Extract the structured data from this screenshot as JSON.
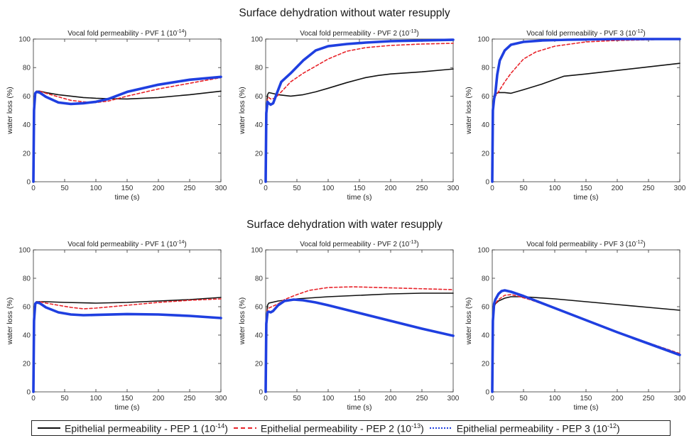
{
  "figure": {
    "row_titles": [
      "Surface dehydration without water resupply",
      "Surface dehydration with water resupply"
    ],
    "colors": {
      "pep1": "#111111",
      "pep2": "#e8232a",
      "pep3": "#1f3fe0"
    },
    "legend": [
      {
        "label": "Epithelial permeability - PEP 1 (10",
        "exp": "-14",
        "close": ")",
        "style": "solid",
        "color": "#111111"
      },
      {
        "label": "Epithelial permeability - PEP 2 (10",
        "exp": "-13",
        "close": ")",
        "style": "dashed",
        "color": "#e8232a"
      },
      {
        "label": "Epithelial permeability - PEP 3 (10",
        "exp": "-12",
        "close": ")",
        "style": "dotted",
        "color": "#1f3fe0"
      }
    ]
  },
  "chart_data": [
    {
      "type": "line",
      "title": "Vocal fold permeability - PVF 1 (10",
      "title_exp": "-14",
      "title_close": ")",
      "xlabel": "time (s)",
      "ylabel": "water loss (%)",
      "xlim": [
        0,
        300
      ],
      "ylim": [
        0,
        100
      ],
      "xticks": [
        0,
        50,
        100,
        150,
        200,
        250,
        300
      ],
      "yticks": [
        0,
        20,
        40,
        60,
        80,
        100
      ],
      "series": [
        {
          "name": "PEP 1",
          "x": [
            0,
            1,
            3,
            5,
            10,
            20,
            40,
            60,
            80,
            100,
            120,
            150,
            200,
            250,
            300
          ],
          "y": [
            0,
            50,
            62,
            63.5,
            63.5,
            62.5,
            61,
            60,
            59,
            58.5,
            58.2,
            58,
            59,
            61,
            63.5
          ]
        },
        {
          "name": "PEP 2",
          "x": [
            0,
            1,
            3,
            5,
            10,
            20,
            40,
            60,
            80,
            100,
            120,
            150,
            200,
            250,
            300
          ],
          "y": [
            0,
            50,
            62,
            63.5,
            63.5,
            62,
            59.5,
            57,
            56,
            55.5,
            56.5,
            60,
            65,
            69,
            73
          ]
        },
        {
          "name": "PEP 3",
          "x": [
            0,
            1,
            3,
            5,
            10,
            20,
            40,
            60,
            80,
            100,
            120,
            150,
            200,
            250,
            300
          ],
          "y": [
            0,
            50,
            62,
            63,
            62.5,
            59.5,
            55.5,
            54.5,
            55,
            56,
            58,
            63,
            68,
            71.5,
            73.5
          ]
        }
      ]
    },
    {
      "type": "line",
      "title": "Vocal fold permeability - PVF 2 (10",
      "title_exp": "-13",
      "title_close": ")",
      "xlabel": "time (s)",
      "ylabel": "water loss (%)",
      "xlim": [
        0,
        300
      ],
      "ylim": [
        0,
        100
      ],
      "xticks": [
        0,
        50,
        100,
        150,
        200,
        250,
        300
      ],
      "yticks": [
        0,
        20,
        40,
        60,
        80,
        100
      ],
      "series": [
        {
          "name": "PEP 1",
          "x": [
            0,
            1,
            3,
            5,
            10,
            20,
            40,
            60,
            80,
            100,
            130,
            160,
            180,
            200,
            250,
            300
          ],
          "y": [
            0,
            50,
            61,
            62.5,
            62,
            61,
            60,
            61,
            63,
            65.5,
            69.5,
            73,
            74.5,
            75.5,
            77,
            79
          ]
        },
        {
          "name": "PEP 2",
          "x": [
            0,
            1,
            3,
            5,
            8,
            15,
            25,
            40,
            60,
            80,
            100,
            130,
            160,
            200,
            250,
            300
          ],
          "y": [
            0,
            50,
            58,
            59,
            58,
            58.5,
            63,
            70,
            76,
            81,
            86,
            91.5,
            94,
            95.5,
            96.5,
            97
          ]
        },
        {
          "name": "PEP 3",
          "x": [
            0,
            1,
            3,
            5,
            8,
            12,
            18,
            25,
            40,
            60,
            80,
            100,
            130,
            160,
            200,
            250,
            300
          ],
          "y": [
            0,
            48,
            56,
            55,
            54,
            55,
            62,
            70,
            76,
            85,
            92,
            95,
            96.5,
            97.5,
            98.5,
            99,
            99.5
          ]
        }
      ]
    },
    {
      "type": "line",
      "title": "Vocal fold permeability - PVF 3 (10",
      "title_exp": "-12",
      "title_close": ")",
      "xlabel": "time (s)",
      "ylabel": "water loss (%)",
      "xlim": [
        0,
        300
      ],
      "ylim": [
        0,
        100
      ],
      "xticks": [
        0,
        50,
        100,
        150,
        200,
        250,
        300
      ],
      "yticks": [
        0,
        20,
        40,
        60,
        80,
        100
      ],
      "series": [
        {
          "name": "PEP 1",
          "x": [
            0,
            1,
            3,
            5,
            10,
            20,
            30,
            50,
            80,
            115,
            150,
            200,
            250,
            300
          ],
          "y": [
            0,
            50,
            60,
            61.5,
            62.5,
            62.5,
            62,
            64.5,
            68.5,
            74,
            75.5,
            78,
            80.5,
            83
          ]
        },
        {
          "name": "PEP 2",
          "x": [
            0,
            1,
            3,
            5,
            10,
            20,
            30,
            50,
            70,
            100,
            150,
            200,
            250,
            300
          ],
          "y": [
            0,
            50,
            58,
            60,
            63,
            70,
            76,
            86,
            91,
            95,
            98,
            99,
            99.5,
            100
          ]
        },
        {
          "name": "PEP 3",
          "x": [
            0,
            1,
            3,
            5,
            8,
            12,
            20,
            30,
            50,
            80,
            120,
            200,
            300
          ],
          "y": [
            0,
            50,
            58,
            62,
            75,
            85,
            92,
            96,
            98,
            99,
            99.5,
            100,
            100
          ]
        }
      ]
    },
    {
      "type": "line",
      "title": "Vocal fold permeability - PVF 1 (10",
      "title_exp": "-14",
      "title_close": ")",
      "xlabel": "time (s)",
      "ylabel": "water loss (%)",
      "xlim": [
        0,
        300
      ],
      "ylim": [
        0,
        100
      ],
      "xticks": [
        0,
        50,
        100,
        150,
        200,
        250,
        300
      ],
      "yticks": [
        0,
        20,
        40,
        60,
        80,
        100
      ],
      "series": [
        {
          "name": "PEP 1",
          "x": [
            0,
            1,
            3,
            5,
            10,
            20,
            50,
            100,
            150,
            200,
            250,
            300
          ],
          "y": [
            0,
            50,
            62,
            63.5,
            63.5,
            63.5,
            63,
            62.5,
            63,
            64,
            65,
            66.5
          ]
        },
        {
          "name": "PEP 2",
          "x": [
            0,
            1,
            3,
            5,
            10,
            20,
            40,
            60,
            80,
            100,
            150,
            200,
            250,
            300
          ],
          "y": [
            0,
            50,
            62,
            63.5,
            63.5,
            62.5,
            61,
            59.5,
            58.5,
            59,
            61,
            63,
            64.5,
            65.5
          ]
        },
        {
          "name": "PEP 3",
          "x": [
            0,
            1,
            3,
            5,
            10,
            20,
            40,
            60,
            80,
            100,
            150,
            200,
            250,
            300
          ],
          "y": [
            0,
            50,
            62,
            63,
            62.5,
            59.5,
            56,
            54.5,
            54,
            54.2,
            54.8,
            54.5,
            53.5,
            52
          ]
        }
      ]
    },
    {
      "type": "line",
      "title": "Vocal fold permeability - PVF 2 (10",
      "title_exp": "-13",
      "title_close": ")",
      "xlabel": "time (s)",
      "ylabel": "water loss (%)",
      "xlim": [
        0,
        300
      ],
      "ylim": [
        0,
        100
      ],
      "xticks": [
        0,
        50,
        100,
        150,
        200,
        250,
        300
      ],
      "yticks": [
        0,
        20,
        40,
        60,
        80,
        100
      ],
      "series": [
        {
          "name": "PEP 1",
          "x": [
            0,
            1,
            3,
            5,
            10,
            20,
            50,
            100,
            150,
            200,
            250,
            300
          ],
          "y": [
            0,
            50,
            61,
            62.5,
            63,
            64,
            65.5,
            67,
            68,
            69,
            69.5,
            69.5
          ]
        },
        {
          "name": "PEP 2",
          "x": [
            0,
            1,
            3,
            5,
            10,
            20,
            30,
            50,
            70,
            100,
            140,
            180,
            220,
            260,
            300
          ],
          "y": [
            0,
            50,
            58,
            59,
            60,
            62,
            65,
            68.5,
            71.5,
            73.5,
            74,
            73.5,
            73,
            72.5,
            72
          ]
        },
        {
          "name": "PEP 3",
          "x": [
            0,
            1,
            3,
            5,
            8,
            12,
            20,
            30,
            45,
            60,
            80,
            100,
            150,
            200,
            250,
            300
          ],
          "y": [
            0,
            48,
            56,
            56.5,
            56,
            57,
            61,
            64,
            65,
            64.5,
            63,
            61,
            55.5,
            50,
            44.5,
            39.5
          ]
        }
      ]
    },
    {
      "type": "line",
      "title": "Vocal fold permeability - PVF 3 (10",
      "title_exp": "-12",
      "title_close": ")",
      "xlabel": "time (s)",
      "ylabel": "water loss (%)",
      "xlim": [
        0,
        300
      ],
      "ylim": [
        0,
        100
      ],
      "xticks": [
        0,
        50,
        100,
        150,
        200,
        250,
        300
      ],
      "yticks": [
        0,
        20,
        40,
        60,
        80,
        100
      ],
      "series": [
        {
          "name": "PEP 1",
          "x": [
            0,
            1,
            3,
            5,
            10,
            20,
            30,
            50,
            100,
            150,
            200,
            250,
            300
          ],
          "y": [
            0,
            50,
            60,
            62,
            64,
            66,
            67,
            67,
            65.5,
            63.5,
            61.5,
            59.5,
            57.5
          ]
        },
        {
          "name": "PEP 2",
          "x": [
            0,
            1,
            3,
            5,
            10,
            20,
            30,
            40,
            60,
            100,
            150,
            200,
            250,
            300
          ],
          "y": [
            0,
            50,
            60,
            62,
            65,
            68,
            68.5,
            67.5,
            65,
            59,
            50.5,
            42,
            34.5,
            27
          ]
        },
        {
          "name": "PEP 3",
          "x": [
            0,
            1,
            3,
            5,
            10,
            15,
            20,
            30,
            50,
            100,
            150,
            200,
            250,
            300
          ],
          "y": [
            0,
            50,
            62,
            65,
            69,
            71,
            71.5,
            70.5,
            67.5,
            59,
            50.5,
            42,
            34,
            26
          ]
        }
      ]
    }
  ]
}
